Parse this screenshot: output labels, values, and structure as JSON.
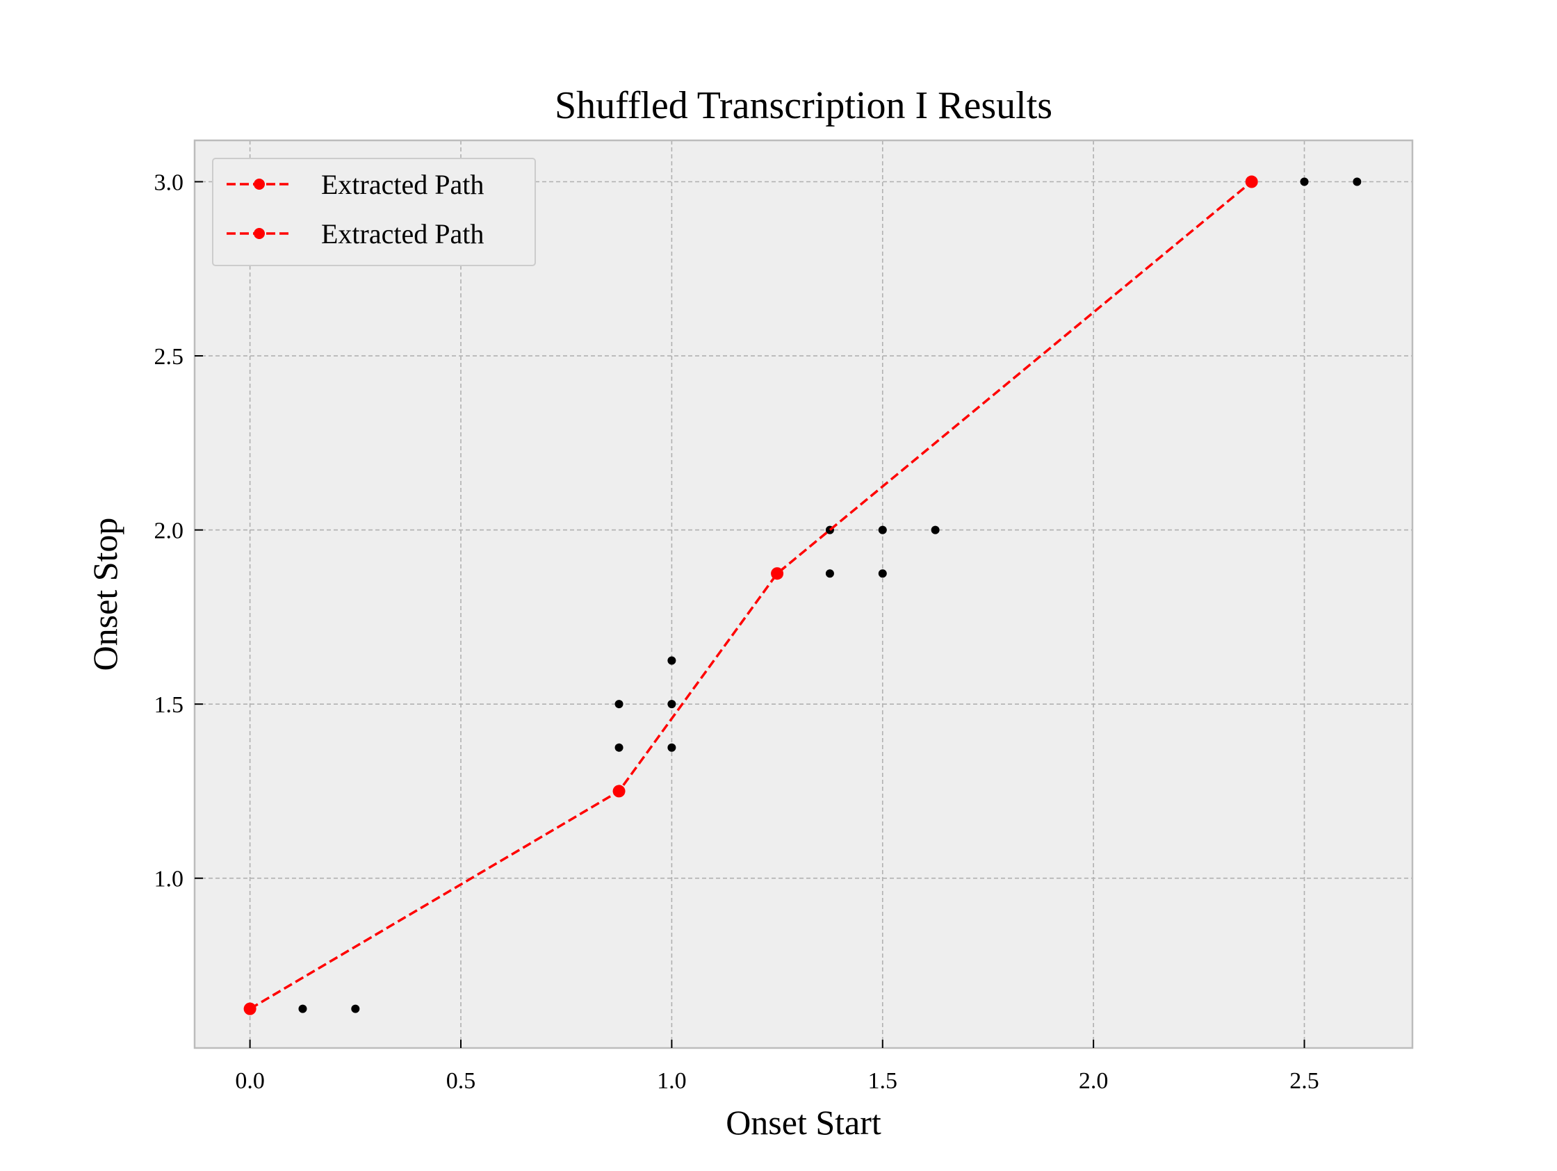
{
  "chart_data": {
    "type": "scatter",
    "title": "Shuffled Transcription I Results",
    "xlabel": "Onset Start",
    "ylabel": "Onset Stop",
    "xlim": [
      -0.13125,
      2.75625
    ],
    "ylim": [
      0.5125,
      3.11875
    ],
    "xticks": [
      0.0,
      0.5,
      1.0,
      1.5,
      2.0,
      2.5
    ],
    "yticks": [
      1.0,
      1.5,
      2.0,
      2.5,
      3.0
    ],
    "x_tick_labels": [
      "0.0",
      "0.5",
      "1.0",
      "1.5",
      "2.0",
      "2.5"
    ],
    "y_tick_labels": [
      "1.0",
      "1.5",
      "2.0",
      "2.5",
      "3.0"
    ],
    "grid": true,
    "legend_position": "upper-left",
    "series": [
      {
        "name": "",
        "kind": "scatter",
        "color": "#000000",
        "points": [
          {
            "x": 0.0,
            "y": 0.625
          },
          {
            "x": 0.125,
            "y": 0.625
          },
          {
            "x": 0.25,
            "y": 0.625
          },
          {
            "x": 0.875,
            "y": 1.25
          },
          {
            "x": 0.875,
            "y": 1.375
          },
          {
            "x": 0.875,
            "y": 1.5
          },
          {
            "x": 1.0,
            "y": 1.375
          },
          {
            "x": 1.0,
            "y": 1.5
          },
          {
            "x": 1.0,
            "y": 1.625
          },
          {
            "x": 1.25,
            "y": 1.875
          },
          {
            "x": 1.375,
            "y": 1.875
          },
          {
            "x": 1.375,
            "y": 2.0
          },
          {
            "x": 1.5,
            "y": 1.875
          },
          {
            "x": 1.5,
            "y": 2.0
          },
          {
            "x": 1.625,
            "y": 2.0
          },
          {
            "x": 2.375,
            "y": 3.0
          },
          {
            "x": 2.5,
            "y": 3.0
          },
          {
            "x": 2.625,
            "y": 3.0
          }
        ]
      },
      {
        "name": "Extracted Path",
        "kind": "line",
        "color": "#ff0000",
        "linestyle": "dashed",
        "marker": "circle",
        "points": [
          {
            "x": 0.0,
            "y": 0.625
          },
          {
            "x": 0.875,
            "y": 1.25
          },
          {
            "x": 1.25,
            "y": 1.875
          },
          {
            "x": 2.375,
            "y": 3.0
          }
        ]
      },
      {
        "name": "Extracted Path",
        "kind": "line",
        "color": "#ff0000",
        "linestyle": "dashed",
        "marker": "circle",
        "points": [
          {
            "x": 0.0,
            "y": 0.625
          },
          {
            "x": 0.875,
            "y": 1.25
          },
          {
            "x": 1.25,
            "y": 1.875
          },
          {
            "x": 2.375,
            "y": 3.0
          }
        ]
      }
    ],
    "legend_entries": [
      "Extracted Path",
      "Extracted Path"
    ],
    "colors": {
      "plot_background": "#eeeeee",
      "grid": "#b0b0b0",
      "frame": "#bcbcbc",
      "path": "#ff0000",
      "points": "#000000"
    }
  }
}
